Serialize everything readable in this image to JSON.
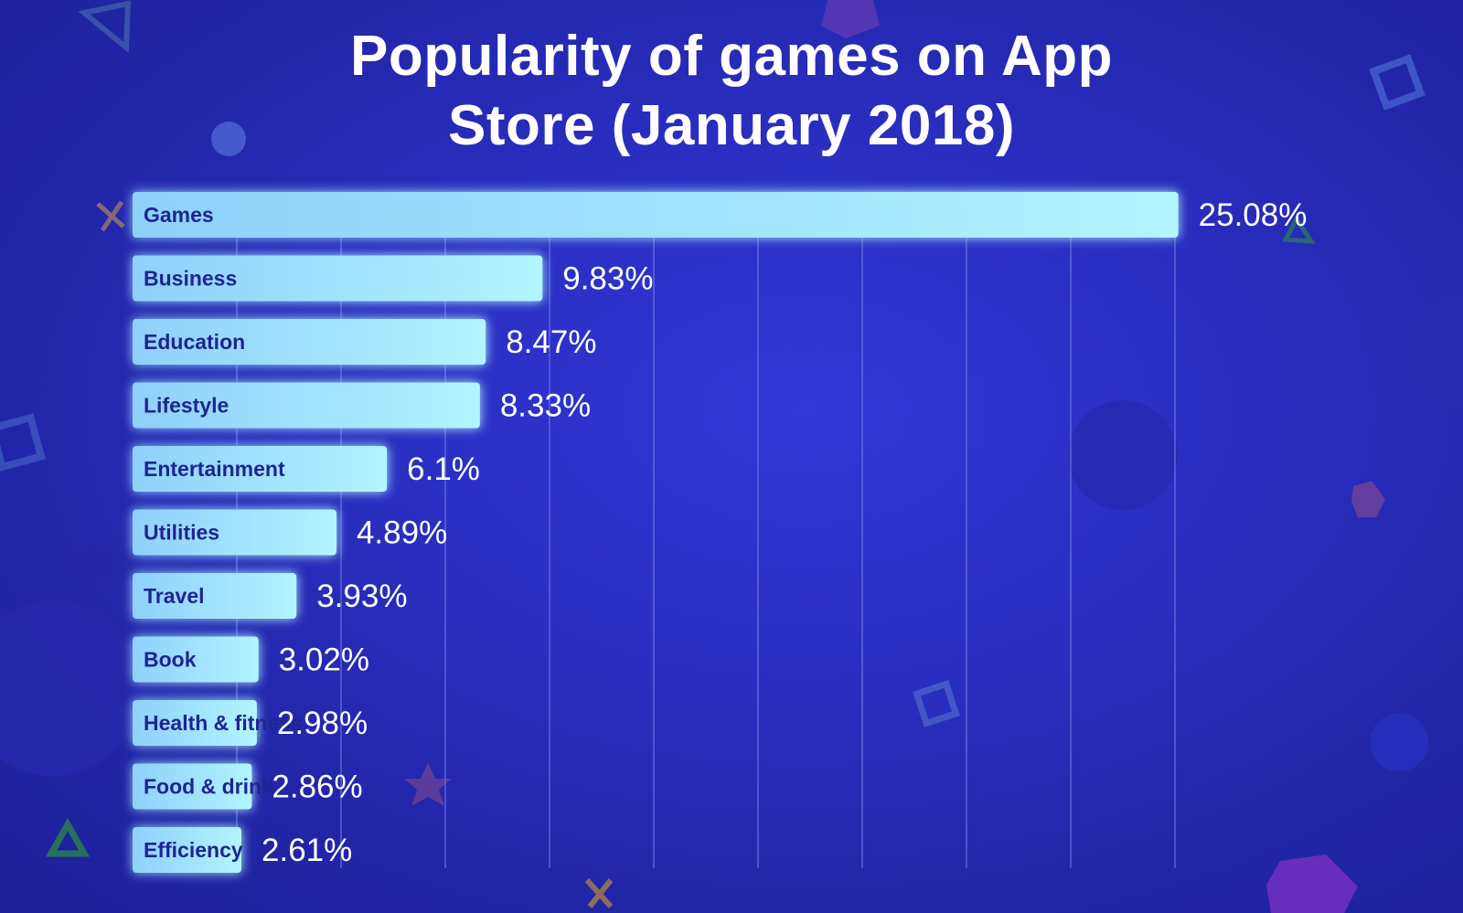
{
  "chart_data": {
    "type": "bar",
    "orientation": "horizontal",
    "title": "Popularity of games on App Store (January 2018)",
    "categories": [
      "Games",
      "Business",
      "Education",
      "Lifestyle",
      "Entertainment",
      "Utilities",
      "Travel",
      "Book",
      "Health & fitness",
      "Food & drink",
      "Efficiency"
    ],
    "values": [
      25.08,
      9.83,
      8.47,
      8.33,
      6.1,
      4.89,
      3.93,
      3.02,
      2.98,
      2.86,
      2.61
    ],
    "value_labels": [
      "25.08%",
      "9.83%",
      "8.47%",
      "8.33%",
      "6.1%",
      "4.89%",
      "3.93%",
      "3.02%",
      "2.98%",
      "2.86%",
      "2.61%"
    ],
    "unit": "%",
    "xlim": [
      0,
      25
    ],
    "grid": true,
    "legend": "none",
    "bar_color_start": "#8fd0fb",
    "bar_color_end": "#b2f4ff",
    "label_color": "#1d2590",
    "background_color": "#2a2fc3"
  }
}
